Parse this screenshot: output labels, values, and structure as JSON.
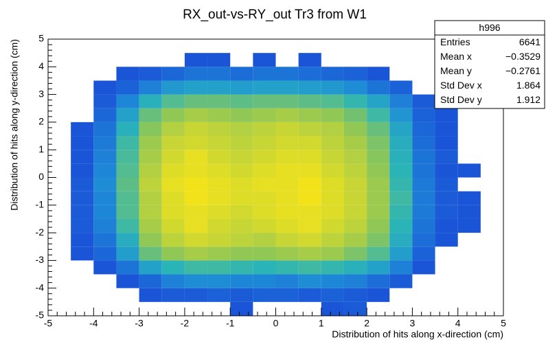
{
  "chart_data": {
    "type": "heatmap",
    "title": "RX_out-vs-RY_out Tr3 from W1",
    "x_label": "Distribution of hits along x-direction (cm)",
    "y_label": "Distribution of hits along y-direction (cm)",
    "xlim": [
      -5,
      5
    ],
    "ylim": [
      -5,
      5
    ],
    "xticks": [
      -5,
      -4,
      -3,
      -2,
      -1,
      0,
      1,
      2,
      3,
      4,
      5
    ],
    "yticks": [
      -5,
      -4,
      -3,
      -2,
      -1,
      0,
      1,
      2,
      3,
      4,
      5
    ],
    "xbins": [
      -5,
      -4.5,
      -4,
      -3.5,
      -3,
      -2.5,
      -2,
      -1.5,
      -1,
      -0.5,
      0,
      0.5,
      1,
      1.5,
      2,
      2.5,
      3,
      3.5,
      4,
      4.5,
      5
    ],
    "ybins": [
      -5,
      -4.5,
      -4,
      -3.5,
      -3,
      -2.5,
      -2,
      -1.5,
      -1,
      -0.5,
      0,
      0.5,
      1,
      1.5,
      2,
      2.5,
      3,
      3.5,
      4,
      4.5,
      5
    ],
    "palette": [
      "#1a55d8",
      "#1f8fd6",
      "#2ab4b8",
      "#8cc658",
      "#f2e21a"
    ],
    "values": [
      [
        0,
        0,
        0,
        0,
        0,
        0,
        0,
        0,
        1,
        0,
        0,
        0,
        1,
        2,
        0,
        0,
        0,
        0,
        0,
        0
      ],
      [
        0,
        0,
        0,
        0,
        1,
        2,
        2,
        3,
        2,
        3,
        3,
        2,
        3,
        2,
        1,
        0,
        0,
        0,
        0,
        0
      ],
      [
        0,
        0,
        0,
        1,
        4,
        8,
        10,
        10,
        9,
        9,
        8,
        10,
        9,
        8,
        5,
        2,
        0,
        0,
        0,
        0
      ],
      [
        0,
        0,
        1,
        6,
        15,
        20,
        22,
        22,
        21,
        20,
        21,
        22,
        21,
        19,
        15,
        8,
        1,
        0,
        0,
        0
      ],
      [
        0,
        1,
        4,
        14,
        26,
        30,
        32,
        31,
        30,
        30,
        31,
        32,
        31,
        28,
        24,
        14,
        3,
        0,
        0,
        0
      ],
      [
        0,
        1,
        6,
        18,
        30,
        34,
        36,
        35,
        34,
        33,
        35,
        36,
        34,
        32,
        28,
        18,
        5,
        1,
        0,
        0
      ],
      [
        0,
        2,
        8,
        22,
        32,
        36,
        38,
        36,
        35,
        36,
        37,
        38,
        36,
        34,
        30,
        20,
        6,
        1,
        1,
        0
      ],
      [
        0,
        2,
        9,
        24,
        33,
        37,
        38,
        37,
        36,
        37,
        38,
        38,
        37,
        35,
        31,
        21,
        7,
        2,
        1,
        0
      ],
      [
        0,
        2,
        9,
        24,
        33,
        37,
        39,
        38,
        37,
        37,
        38,
        39,
        37,
        35,
        31,
        22,
        7,
        2,
        1,
        0
      ],
      [
        0,
        2,
        10,
        25,
        34,
        38,
        39,
        38,
        37,
        38,
        38,
        39,
        37,
        35,
        31,
        21,
        7,
        2,
        0,
        0
      ],
      [
        0,
        1,
        9,
        24,
        33,
        37,
        38,
        37,
        36,
        37,
        38,
        38,
        36,
        34,
        30,
        20,
        6,
        1,
        1,
        0
      ],
      [
        0,
        1,
        8,
        23,
        32,
        36,
        38,
        36,
        35,
        36,
        37,
        37,
        35,
        33,
        29,
        19,
        6,
        2,
        0,
        0
      ],
      [
        0,
        1,
        7,
        22,
        31,
        35,
        36,
        35,
        34,
        35,
        36,
        36,
        34,
        32,
        28,
        18,
        5,
        1,
        0,
        0
      ],
      [
        0,
        1,
        6,
        19,
        29,
        33,
        35,
        34,
        33,
        34,
        35,
        34,
        33,
        30,
        26,
        16,
        4,
        1,
        0,
        0
      ],
      [
        0,
        0,
        4,
        15,
        26,
        30,
        32,
        31,
        30,
        31,
        32,
        31,
        30,
        27,
        22,
        12,
        3,
        1,
        0,
        0
      ],
      [
        0,
        0,
        2,
        9,
        19,
        24,
        26,
        26,
        25,
        26,
        26,
        25,
        24,
        21,
        16,
        8,
        2,
        0,
        0,
        0
      ],
      [
        0,
        0,
        1,
        3,
        8,
        13,
        15,
        15,
        14,
        15,
        15,
        14,
        13,
        10,
        6,
        3,
        0,
        0,
        0,
        0
      ],
      [
        0,
        0,
        0,
        1,
        2,
        4,
        6,
        6,
        5,
        6,
        6,
        5,
        4,
        3,
        1,
        0,
        0,
        0,
        0,
        0
      ],
      [
        0,
        0,
        0,
        0,
        0,
        0,
        1,
        1,
        0,
        1,
        0,
        1,
        0,
        0,
        0,
        0,
        0,
        0,
        0,
        0
      ],
      [
        0,
        0,
        0,
        0,
        0,
        0,
        0,
        0,
        0,
        0,
        0,
        0,
        0,
        0,
        0,
        0,
        0,
        0,
        0,
        0
      ]
    ],
    "stats": {
      "title": "h996",
      "rows": [
        [
          "Entries",
          "6641"
        ],
        [
          "Mean x",
          "−0.3529"
        ],
        [
          "Mean y",
          "−0.2761"
        ],
        [
          "Std Dev x",
          "1.864"
        ],
        [
          "Std Dev y",
          "1.912"
        ]
      ]
    }
  }
}
